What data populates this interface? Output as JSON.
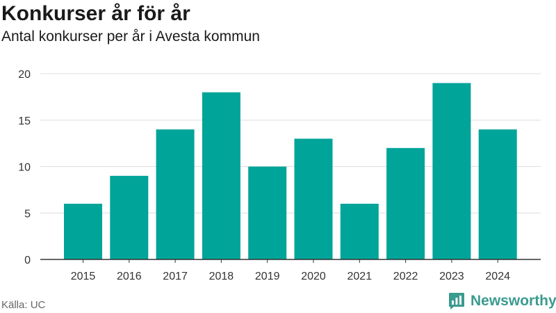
{
  "title": "Konkurser år för år",
  "subtitle": "Antal konkurser per år i Avesta kommun",
  "source": "Källa: UC",
  "brand": {
    "name": "Newsworthy",
    "icon": "newsworthy-logo-icon"
  },
  "colors": {
    "bar": "#00a499",
    "brand": "#3a9b8f",
    "grid": "#dddddd",
    "axis": "#333333"
  },
  "chart_data": {
    "type": "bar",
    "categories": [
      "2015",
      "2016",
      "2017",
      "2018",
      "2019",
      "2020",
      "2021",
      "2022",
      "2023",
      "2024"
    ],
    "values": [
      6,
      9,
      14,
      18,
      10,
      13,
      6,
      12,
      19,
      14
    ],
    "title": "Konkurser år för år",
    "subtitle": "Antal konkurser per år i Avesta kommun",
    "ylim": [
      0,
      20
    ],
    "yticks": [
      0,
      5,
      10,
      15,
      20
    ],
    "grid": true,
    "legend": "none"
  }
}
